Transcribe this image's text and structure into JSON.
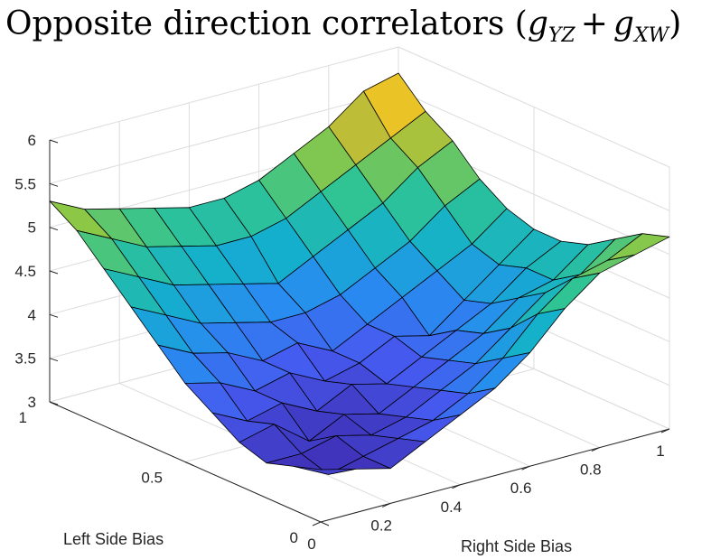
{
  "chart_data": {
    "type": "surface",
    "title": {
      "text": "Opposite direction correlators (",
      "math_g1": "g",
      "math_sub1": "YZ",
      "math_plus": "+",
      "math_g2": "g",
      "math_sub2": "XW",
      "close": ")"
    },
    "xlabel": "Right Side Bias",
    "ylabel": "Left Side Bias",
    "zlabel": "",
    "xlim": [
      0,
      1
    ],
    "ylim": [
      0,
      1
    ],
    "zlim": [
      3,
      6
    ],
    "x_ticks": [
      "0",
      "0.2",
      "0.4",
      "0.6",
      "0.8",
      "1"
    ],
    "y_ticks": [
      "0",
      "0.5",
      "1"
    ],
    "z_ticks": [
      "3",
      "3.5",
      "4",
      "4.5",
      "5",
      "5.5",
      "6"
    ],
    "colormap": "parula",
    "grid": true,
    "x": [
      0,
      0.1,
      0.2,
      0.3,
      0.4,
      0.5,
      0.6,
      0.7,
      0.8,
      0.9,
      1
    ],
    "y": [
      0,
      0.1,
      0.2,
      0.3,
      0.4,
      0.5,
      0.6,
      0.7,
      0.8,
      0.9,
      1
    ],
    "z": [
      [
        3.6,
        3.5,
        3.4,
        3.6,
        3.8,
        4.0,
        4.3,
        4.7,
        5.0,
        5.1,
        5.2
      ],
      [
        3.5,
        3.3,
        3.4,
        3.5,
        3.6,
        3.8,
        4.1,
        4.5,
        4.8,
        4.9,
        5.1
      ],
      [
        3.4,
        3.4,
        3.5,
        3.4,
        3.5,
        3.7,
        3.9,
        4.2,
        4.5,
        4.6,
        4.9
      ],
      [
        3.5,
        3.6,
        3.3,
        3.5,
        3.4,
        3.6,
        3.8,
        4.0,
        4.3,
        4.4,
        4.7
      ],
      [
        3.7,
        3.5,
        3.6,
        3.4,
        3.6,
        3.5,
        3.7,
        3.9,
        4.1,
        4.4,
        4.6
      ],
      [
        3.9,
        3.8,
        3.6,
        3.7,
        3.5,
        3.6,
        3.8,
        3.7,
        4.0,
        4.3,
        4.6
      ],
      [
        4.2,
        4.0,
        3.9,
        3.7,
        3.8,
        3.6,
        3.8,
        4.0,
        4.2,
        4.4,
        4.7
      ],
      [
        4.5,
        4.3,
        4.1,
        4.0,
        3.9,
        3.9,
        4.0,
        4.2,
        4.4,
        4.7,
        4.9
      ],
      [
        4.8,
        4.6,
        4.4,
        4.3,
        4.2,
        4.1,
        4.3,
        4.5,
        4.7,
        5.0,
        5.2
      ],
      [
        5.1,
        4.9,
        4.7,
        4.6,
        4.5,
        4.5,
        4.6,
        4.8,
        5.0,
        5.2,
        5.4
      ],
      [
        5.3,
        5.1,
        5.0,
        4.9,
        4.8,
        4.8,
        4.9,
        5.1,
        5.3,
        5.6,
        5.7
      ]
    ]
  }
}
